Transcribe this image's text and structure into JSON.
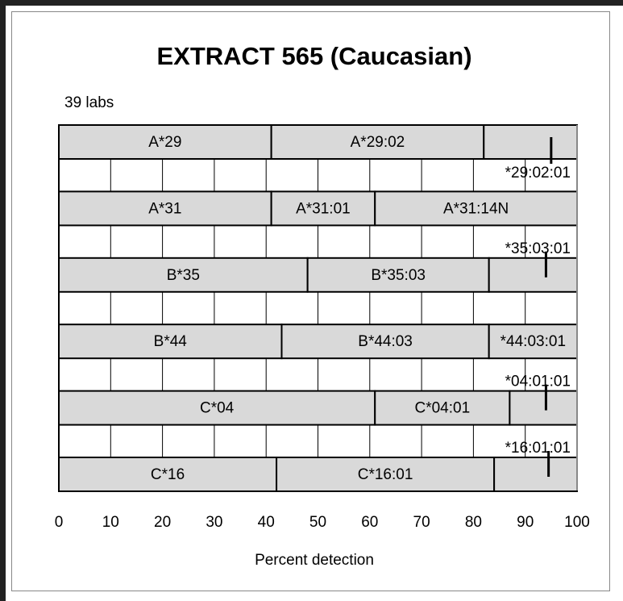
{
  "chart_data": {
    "type": "stacked_bar_rows",
    "title": "EXTRACT 565 (Caucasian)",
    "subtitle": "39 labs",
    "xlabel": "Percent detection",
    "xlim": [
      0,
      100
    ],
    "xticks": [
      0,
      10,
      20,
      30,
      40,
      50,
      60,
      70,
      80,
      90,
      100
    ],
    "grid": true,
    "color": "#d9d9d9",
    "rows": [
      {
        "segments": [
          {
            "label": "A*29",
            "value": 41
          },
          {
            "label": "A*29:02",
            "value": 41
          },
          {
            "label": "*29:02:01",
            "value": 18
          }
        ],
        "marker": 95
      },
      {
        "segments": [
          {
            "label": "A*31",
            "value": 41
          },
          {
            "label": "A*31:01",
            "value": 20
          },
          {
            "label": "A*31:14N",
            "value": 39
          }
        ]
      },
      {
        "segments": [
          {
            "label": "B*35",
            "value": 48
          },
          {
            "label": "B*35:03",
            "value": 35
          },
          {
            "label": "*35:03:01",
            "value": 17
          }
        ],
        "marker": 94
      },
      {
        "segments": [
          {
            "label": "B*44",
            "value": 43
          },
          {
            "label": "B*44:03",
            "value": 40
          },
          {
            "label": "*44:03:01",
            "value": 17
          }
        ]
      },
      {
        "segments": [
          {
            "label": "C*04",
            "value": 61
          },
          {
            "label": "C*04:01",
            "value": 26
          },
          {
            "label": "*04:01:01",
            "value": 13
          }
        ],
        "marker": 94
      },
      {
        "segments": [
          {
            "label": "C*16",
            "value": 42
          },
          {
            "label": "C*16:01",
            "value": 42
          },
          {
            "label": "*16:01:01",
            "value": 16
          }
        ],
        "marker": 94.5
      }
    ]
  }
}
